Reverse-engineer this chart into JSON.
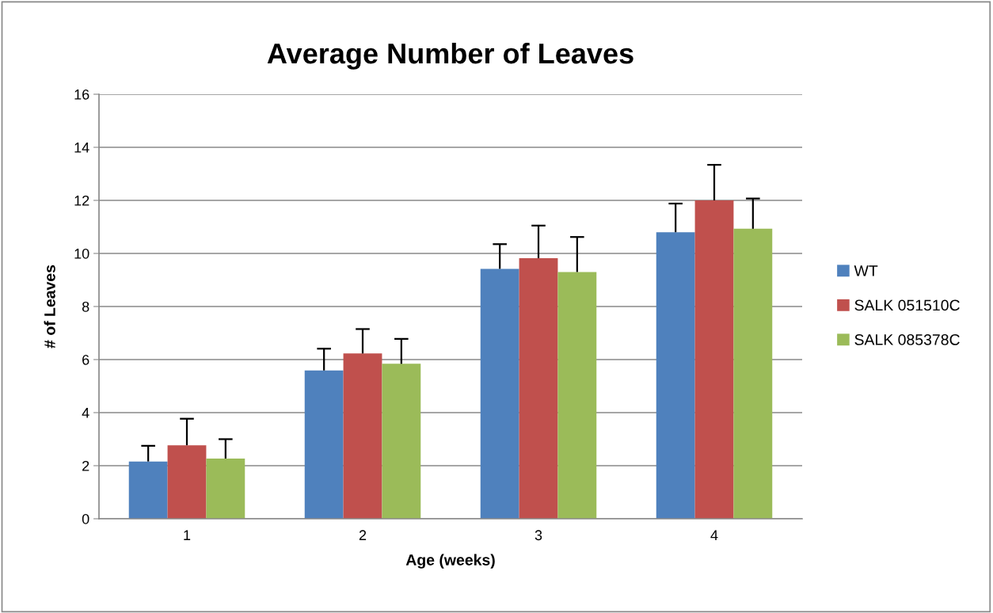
{
  "chart_data": {
    "type": "bar",
    "title": "Average Number of Leaves",
    "xlabel": "Age (weeks)",
    "ylabel": "# of Leaves",
    "categories": [
      "1",
      "2",
      "3",
      "4"
    ],
    "series": [
      {
        "name": "WT",
        "color": "#4f81bd",
        "values": [
          2.16,
          5.59,
          9.42,
          10.8
        ],
        "errors": [
          [
            2.16,
            2.75
          ],
          [
            5.59,
            6.41
          ],
          [
            9.42,
            10.35
          ],
          [
            10.8,
            11.88
          ]
        ]
      },
      {
        "name": "SALK 051510C",
        "color": "#c0504d",
        "values": [
          2.77,
          6.23,
          9.82,
          12.0
        ],
        "errors": [
          [
            2.77,
            3.77
          ],
          [
            6.23,
            7.15
          ],
          [
            9.82,
            11.05
          ],
          [
            12.0,
            13.34
          ]
        ]
      },
      {
        "name": "SALK 085378C",
        "color": "#9bbb59",
        "values": [
          2.27,
          5.84,
          9.3,
          10.93
        ],
        "errors": [
          [
            2.27,
            3.0
          ],
          [
            5.84,
            6.78
          ],
          [
            9.3,
            10.62
          ],
          [
            10.93,
            12.07
          ]
        ]
      }
    ],
    "ylim": [
      0,
      16
    ],
    "yticks": [
      0,
      2,
      4,
      6,
      8,
      10,
      12,
      14,
      16
    ],
    "grid": "y",
    "legend": "right"
  }
}
